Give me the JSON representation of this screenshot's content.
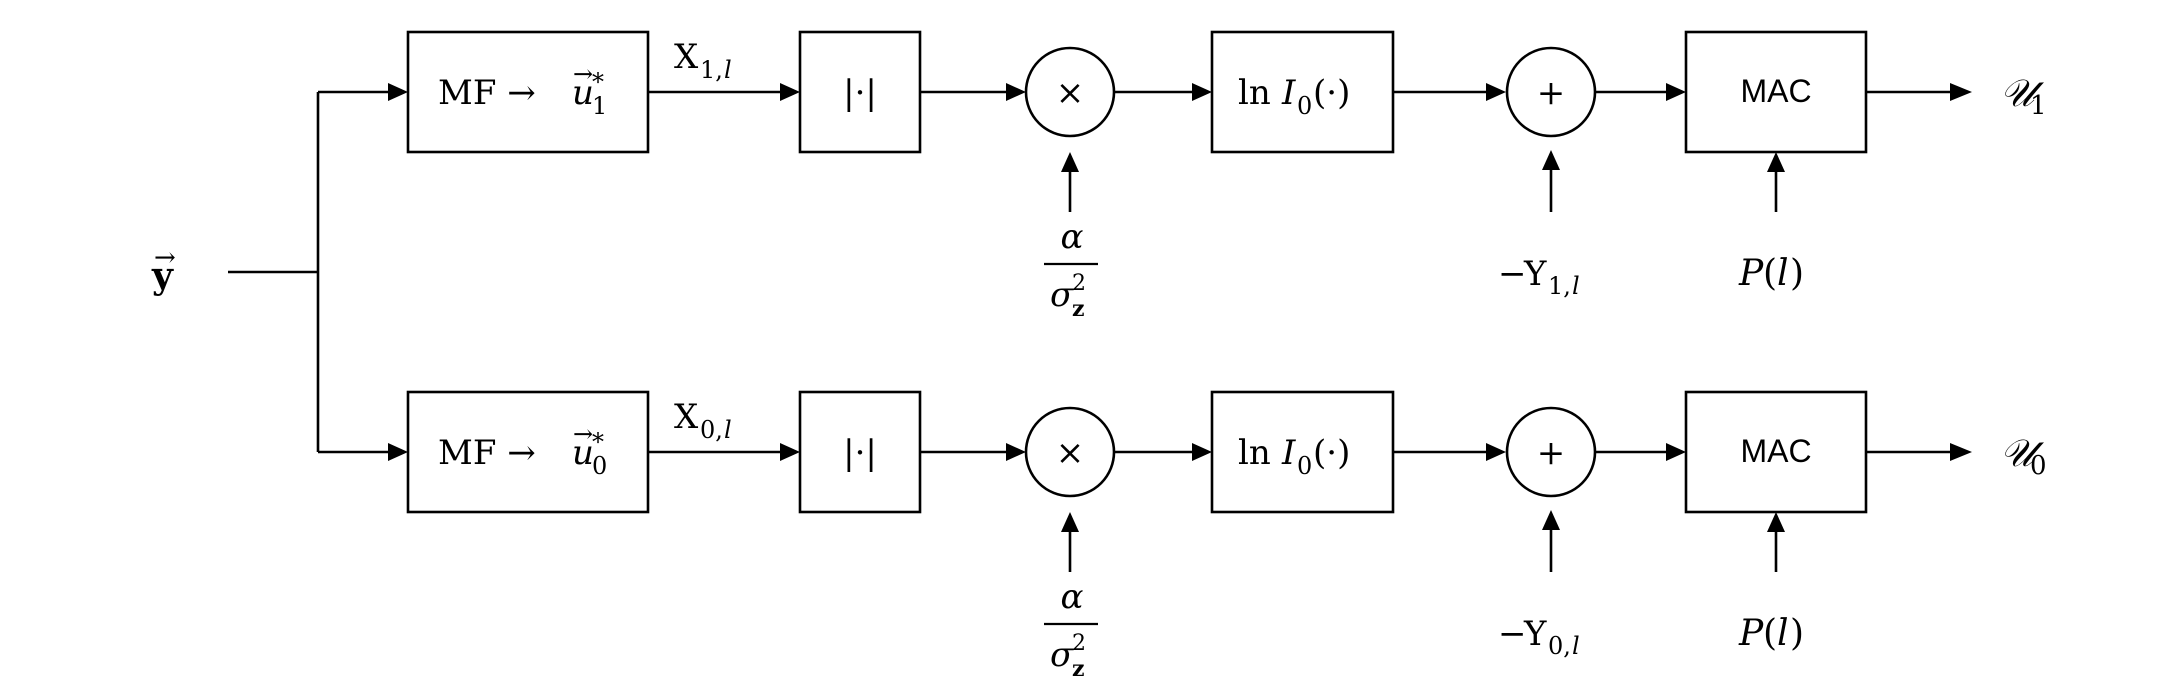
{
  "diagram": {
    "input": {
      "main": "y",
      "accent": "→"
    },
    "branches": [
      {
        "id": "branch-1",
        "matched_filter": {
          "prefix": "MF → ",
          "var": "u",
          "accent": "→",
          "sup": "*",
          "sub": "1"
        },
        "x_signal": {
          "main": "X",
          "sub": "1,",
          "sub_it": "l"
        },
        "abs": "|·|",
        "multiply": "×",
        "gain": {
          "num": "α",
          "den": "σ",
          "den_sup": "2",
          "den_sub": "z"
        },
        "ln_bessel": {
          "ln": "ln ",
          "I": "I",
          "I_sub": "0",
          "arg": "(·)"
        },
        "sum": "+",
        "offset": {
          "minus": "−",
          "main": "Y",
          "sub": "1,",
          "sub_it": "l"
        },
        "mac": "MAC",
        "prior": {
          "p": "P",
          "open": "(",
          "arg": "l",
          "close": ")"
        },
        "output": {
          "main": "𝒰",
          "sub": "1"
        }
      },
      {
        "id": "branch-0",
        "matched_filter": {
          "prefix": "MF → ",
          "var": "u",
          "accent": "→",
          "sup": "*",
          "sub": "0"
        },
        "x_signal": {
          "main": "X",
          "sub": "0,",
          "sub_it": "l"
        },
        "abs": "|·|",
        "multiply": "×",
        "gain": {
          "num": "α",
          "den": "σ",
          "den_sup": "2",
          "den_sub": "z"
        },
        "ln_bessel": {
          "ln": "ln ",
          "I": "I",
          "I_sub": "0",
          "arg": "(·)"
        },
        "sum": "+",
        "offset": {
          "minus": "−",
          "main": "Y",
          "sub": "0,",
          "sub_it": "l"
        },
        "mac": "MAC",
        "prior": {
          "p": "P",
          "open": "(",
          "arg": "l",
          "close": ")"
        },
        "output": {
          "main": "𝒰",
          "sub": "0"
        }
      }
    ]
  }
}
